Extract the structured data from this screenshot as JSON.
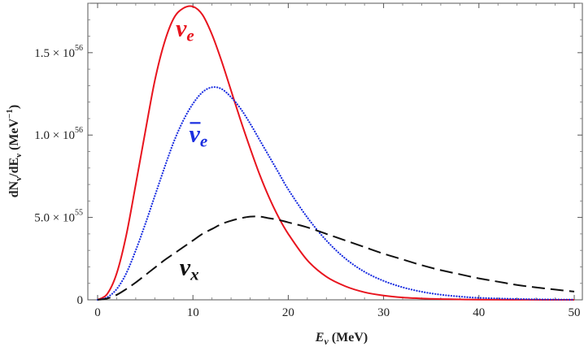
{
  "chart_data": {
    "type": "line",
    "xlabel_main": "E",
    "xlabel_sub": "ν",
    "xlabel_rest": " (MeV)",
    "ylabel_a": "dN",
    "ylabel_a_sub": "ν",
    "ylabel_b": "/dE",
    "ylabel_b_sub": "ν",
    "ylabel_unit": " (MeV",
    "ylabel_unit_sup": "−1",
    "ylabel_close": ")",
    "xlim": [
      0,
      50
    ],
    "ylim": [
      0,
      1.8e+56
    ],
    "x_ticks": [
      {
        "value": 0,
        "label": "0"
      },
      {
        "value": 10,
        "label": "10"
      },
      {
        "value": 20,
        "label": "20"
      },
      {
        "value": 30,
        "label": "30"
      },
      {
        "value": 40,
        "label": "40"
      },
      {
        "value": 50,
        "label": "50"
      }
    ],
    "y_ticks": [
      {
        "value": 0,
        "mant": "0",
        "exp": ""
      },
      {
        "value": 5e+55,
        "mant": "5.0 × 10",
        "exp": "55"
      },
      {
        "value": 1e+56,
        "mant": "1.0 × 10",
        "exp": "56"
      },
      {
        "value": 1.5e+56,
        "mant": "1.5 × 10",
        "exp": "56"
      }
    ],
    "series": [
      {
        "id": "nu_e",
        "label_base": "ν",
        "label_sub": "e",
        "bar": false,
        "color": "#e8141e",
        "style": "solid",
        "label_at": [
          8.2,
          1.6e+56
        ],
        "x": [
          0,
          1,
          2,
          3,
          4,
          5,
          6,
          7,
          8,
          9,
          10,
          11,
          12,
          13,
          14,
          15,
          16,
          17,
          18,
          19,
          20,
          22,
          24,
          26,
          28,
          30,
          32,
          34,
          36,
          38,
          40,
          45,
          50
        ],
        "y": [
          0,
          3.5e+54,
          1.6e+55,
          3.9e+55,
          7e+55,
          1.02e+56,
          1.33e+56,
          1.56e+56,
          1.71e+56,
          1.77e+56,
          1.78e+56,
          1.73e+56,
          1.61e+56,
          1.45e+56,
          1.27e+56,
          1.09e+56,
          9.2e+55,
          7.6e+55,
          6.2e+55,
          5e+55,
          4e+55,
          2.4e+55,
          1.4e+55,
          8.2e+54,
          4.6e+54,
          2.6e+54,
          1.4e+54,
          8e+53,
          4.5e+53,
          2.5e+53,
          1.5e+53,
          4e+52,
          1e+52
        ]
      },
      {
        "id": "nu_e_bar",
        "label_base": "ν",
        "label_sub": "e",
        "bar": true,
        "color": "#1a2ee0",
        "style": "dotted",
        "label_at": [
          9.6,
          9.6e+55
        ],
        "x": [
          0,
          1,
          2,
          3,
          4,
          5,
          6,
          7,
          8,
          9,
          10,
          11,
          12,
          13,
          14,
          15,
          16,
          17,
          18,
          19,
          20,
          22,
          24,
          26,
          28,
          30,
          32,
          34,
          36,
          38,
          40,
          45,
          50
        ],
        "y": [
          0,
          1.5e+54,
          6.5e+54,
          1.6e+55,
          3e+55,
          4.6e+55,
          6.3e+55,
          8e+55,
          9.6e+55,
          1.09e+56,
          1.19e+56,
          1.26e+56,
          1.29e+56,
          1.28e+56,
          1.23e+56,
          1.16e+56,
          1.07e+56,
          9.7e+55,
          8.7e+55,
          7.7e+55,
          6.7e+55,
          5e+55,
          3.6e+55,
          2.5e+55,
          1.7e+55,
          1.15e+55,
          7.6e+54,
          4.9e+54,
          3.1e+54,
          2e+54,
          1.2e+54,
          4e+53,
          1e+53
        ]
      },
      {
        "id": "nu_x",
        "label_base": "ν",
        "label_sub": "x",
        "bar": false,
        "color": "#111111",
        "style": "dashed",
        "label_at": [
          8.6,
          1.5e+55
        ],
        "x": [
          0,
          1,
          2,
          3,
          4,
          5,
          6,
          7,
          8,
          9,
          10,
          11,
          12,
          13,
          14,
          15,
          16,
          17,
          18,
          19,
          20,
          22,
          24,
          26,
          28,
          30,
          32,
          34,
          36,
          38,
          40,
          42,
          44,
          46,
          48,
          50
        ],
        "y": [
          0,
          8e+53,
          3e+54,
          6.5e+54,
          1.05e+55,
          1.5e+55,
          1.95e+55,
          2.4e+55,
          2.8e+55,
          3.2e+55,
          3.6e+55,
          4e+55,
          4.3e+55,
          4.6e+55,
          4.8e+55,
          4.95e+55,
          5.05e+55,
          5.05e+55,
          4.95e+55,
          4.85e+55,
          4.7e+55,
          4.4e+55,
          4e+55,
          3.6e+55,
          3.2e+55,
          2.8e+55,
          2.45e+55,
          2.1e+55,
          1.8e+55,
          1.55e+55,
          1.3e+55,
          1.1e+55,
          9e+54,
          7.5e+54,
          6.2e+54,
          5e+54
        ]
      }
    ]
  }
}
